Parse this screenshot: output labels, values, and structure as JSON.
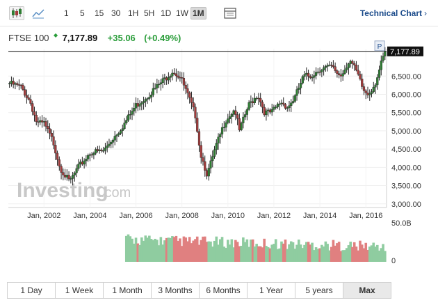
{
  "toolbar": {
    "ranges": [
      "1",
      "5",
      "15",
      "30",
      "1H",
      "5H",
      "1D",
      "1W",
      "1M"
    ],
    "selected_range": "1M",
    "technical_chart_label": "Technical Chart",
    "chevron": "›"
  },
  "quote": {
    "name": "FTSE 100",
    "arrow": "◆",
    "price": "7,177.89",
    "change": "+35.06",
    "change_pct": "(+0.49%)"
  },
  "watermark": {
    "brand": "Investing",
    "suffix": ".com"
  },
  "marker_label": "P",
  "colors": {
    "up": "#2e7d32",
    "down": "#a33b3b",
    "vol_up": "#8fcca0",
    "vol_down": "#e08080",
    "accent": "#1a4a8a"
  },
  "range_buttons": [
    "1 Day",
    "1 Week",
    "1 Month",
    "3 Months",
    "6 Months",
    "1 Year",
    "5 years",
    "Max"
  ],
  "selected_range_button": "Max",
  "chart_data": {
    "type": "candlestick",
    "instrument": "FTSE 100",
    "interval": "1M",
    "y_ticks": [
      3000,
      3500,
      4000,
      4500,
      5000,
      5500,
      6000,
      6500
    ],
    "y_tick_labels": [
      "3,000.00",
      "3,500.00",
      "4,000.00",
      "4,500.00",
      "5,000.00",
      "5,500.00",
      "6,000.00",
      "6,500.00"
    ],
    "ylim": [
      2900,
      7250
    ],
    "x_tick_labels": [
      "Jan, 2002",
      "Jan, 2004",
      "Jan, 2006",
      "Jan, 2008",
      "Jan, 2010",
      "Jan, 2012",
      "Jan, 2014",
      "Jan, 2016"
    ],
    "x_tick_years": [
      2002,
      2004,
      2006,
      2008,
      2010,
      2012,
      2014,
      2016
    ],
    "last_price_label": "7,177.89",
    "last_price": 7177.89,
    "volume_label_top": "50.0B",
    "volume_label_bottom": "0",
    "volume_max": 50,
    "close_path": [
      {
        "t": 2000.5,
        "v": 6300
      },
      {
        "t": 2001.0,
        "v": 6200
      },
      {
        "t": 2001.4,
        "v": 5800
      },
      {
        "t": 2001.7,
        "v": 5200
      },
      {
        "t": 2002.0,
        "v": 5200
      },
      {
        "t": 2002.4,
        "v": 4700
      },
      {
        "t": 2002.7,
        "v": 4000
      },
      {
        "t": 2003.1,
        "v": 3600
      },
      {
        "t": 2003.5,
        "v": 4000
      },
      {
        "t": 2004.0,
        "v": 4400
      },
      {
        "t": 2004.6,
        "v": 4450
      },
      {
        "t": 2005.0,
        "v": 4800
      },
      {
        "t": 2005.5,
        "v": 5200
      },
      {
        "t": 2006.0,
        "v": 5700
      },
      {
        "t": 2006.4,
        "v": 5900
      },
      {
        "t": 2006.9,
        "v": 6200
      },
      {
        "t": 2007.3,
        "v": 6450
      },
      {
        "t": 2007.6,
        "v": 6650
      },
      {
        "t": 2007.95,
        "v": 6450
      },
      {
        "t": 2008.3,
        "v": 5900
      },
      {
        "t": 2008.6,
        "v": 5400
      },
      {
        "t": 2008.8,
        "v": 4400
      },
      {
        "t": 2009.1,
        "v": 3800
      },
      {
        "t": 2009.2,
        "v": 4000
      },
      {
        "t": 2009.5,
        "v": 4600
      },
      {
        "t": 2009.9,
        "v": 5300
      },
      {
        "t": 2010.3,
        "v": 5600
      },
      {
        "t": 2010.5,
        "v": 5000
      },
      {
        "t": 2010.9,
        "v": 5700
      },
      {
        "t": 2011.3,
        "v": 6000
      },
      {
        "t": 2011.6,
        "v": 5500
      },
      {
        "t": 2011.9,
        "v": 5500
      },
      {
        "t": 2012.3,
        "v": 5800
      },
      {
        "t": 2012.6,
        "v": 5650
      },
      {
        "t": 2012.9,
        "v": 5900
      },
      {
        "t": 2013.3,
        "v": 6500
      },
      {
        "t": 2013.6,
        "v": 6500
      },
      {
        "t": 2014.0,
        "v": 6700
      },
      {
        "t": 2014.5,
        "v": 6750
      },
      {
        "t": 2014.9,
        "v": 6500
      },
      {
        "t": 2015.3,
        "v": 6950
      },
      {
        "t": 2015.6,
        "v": 6600
      },
      {
        "t": 2015.9,
        "v": 6100
      },
      {
        "t": 2016.1,
        "v": 6000
      },
      {
        "t": 2016.4,
        "v": 6300
      },
      {
        "t": 2016.7,
        "v": 6900
      },
      {
        "t": 2016.85,
        "v": 7177.89
      }
    ]
  }
}
